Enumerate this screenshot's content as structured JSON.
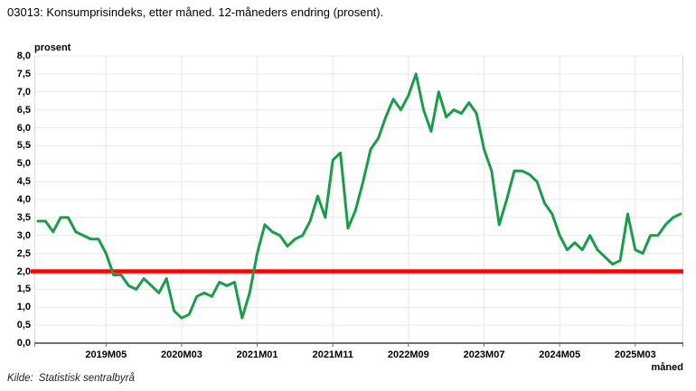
{
  "page": {
    "title": "03013: Konsumprisindeks, etter måned. 12-måneders endring (prosent).",
    "source_label": "Kilde:",
    "source_value": "Statistisk sentralbyrå"
  },
  "chart_data": {
    "type": "line",
    "title": "03013: Konsumprisindeks, etter måned. 12-måneders endring (prosent).",
    "ylabel": "prosent",
    "xlabel": "måned",
    "ylim": [
      0.0,
      8.0
    ],
    "ytick_step": 0.5,
    "grid": true,
    "legend": "none",
    "y_tick_labels": [
      "8,0",
      "7,5",
      "7,0",
      "6,5",
      "6,0",
      "5,5",
      "5,0",
      "4,5",
      "4,0",
      "3,5",
      "3,0",
      "2,5",
      "2,0",
      "1,5",
      "1,0",
      "0,5",
      "0,0"
    ],
    "x": [
      "2018M08",
      "2018M09",
      "2018M10",
      "2018M11",
      "2018M12",
      "2019M01",
      "2019M02",
      "2019M03",
      "2019M04",
      "2019M05",
      "2019M06",
      "2019M07",
      "2019M08",
      "2019M09",
      "2019M10",
      "2019M11",
      "2019M12",
      "2020M01",
      "2020M02",
      "2020M03",
      "2020M04",
      "2020M05",
      "2020M06",
      "2020M07",
      "2020M08",
      "2020M09",
      "2020M10",
      "2020M11",
      "2020M12",
      "2021M01",
      "2021M02",
      "2021M03",
      "2021M04",
      "2021M05",
      "2021M06",
      "2021M07",
      "2021M08",
      "2021M09",
      "2021M10",
      "2021M11",
      "2021M12",
      "2022M01",
      "2022M02",
      "2022M03",
      "2022M04",
      "2022M05",
      "2022M06",
      "2022M07",
      "2022M08",
      "2022M09",
      "2022M10",
      "2022M11",
      "2022M12",
      "2023M01",
      "2023M02",
      "2023M03",
      "2023M04",
      "2023M05",
      "2023M06",
      "2023M07",
      "2023M08",
      "2023M09",
      "2023M10",
      "2023M11",
      "2023M12",
      "2024M01",
      "2024M02",
      "2024M03",
      "2024M04",
      "2024M05",
      "2024M06",
      "2024M07",
      "2024M08",
      "2024M09",
      "2024M10",
      "2024M11",
      "2024M12",
      "2025M01",
      "2025M02",
      "2025M03",
      "2025M04",
      "2025M05",
      "2025M06",
      "2025M07",
      "2025M08",
      "2025M09"
    ],
    "x_tick_labels": [
      "2019M05",
      "2020M03",
      "2021M01",
      "2021M11",
      "2022M09",
      "2023M07",
      "2024M05",
      "2025M03"
    ],
    "x_tick_indices": [
      9,
      19,
      29,
      39,
      49,
      59,
      69,
      79
    ],
    "series": [
      {
        "name": "Konsumprisindeks, 12-måneders endring",
        "color": "#1a9d49",
        "values": [
          3.4,
          3.4,
          3.1,
          3.5,
          3.5,
          3.1,
          3.0,
          2.9,
          2.9,
          2.5,
          1.9,
          1.9,
          1.6,
          1.5,
          1.8,
          1.6,
          1.4,
          1.8,
          0.9,
          0.7,
          0.8,
          1.3,
          1.4,
          1.3,
          1.7,
          1.6,
          1.7,
          0.7,
          1.4,
          2.5,
          3.3,
          3.1,
          3.0,
          2.7,
          2.9,
          3.0,
          3.4,
          4.1,
          3.5,
          5.1,
          5.3,
          3.2,
          3.7,
          4.5,
          5.4,
          5.7,
          6.3,
          6.8,
          6.5,
          6.9,
          7.5,
          6.5,
          5.9,
          7.0,
          6.3,
          6.5,
          6.4,
          6.7,
          6.4,
          5.4,
          4.8,
          3.3,
          4.0,
          4.8,
          4.8,
          4.7,
          4.5,
          3.9,
          3.6,
          3.0,
          2.6,
          2.8,
          2.6,
          3.0,
          2.6,
          2.4,
          2.2,
          2.3,
          3.6,
          2.6,
          2.5,
          3.0,
          3.0,
          3.3,
          3.5,
          3.6
        ]
      }
    ],
    "reference_line": {
      "value": 2.0,
      "color": "#ff0000"
    },
    "colors": {
      "line": "#1a9d49",
      "reference": "#ff0000",
      "grid": "#e8e8e8",
      "plot_border": "#dcdcdc",
      "axis": "#707070"
    }
  }
}
